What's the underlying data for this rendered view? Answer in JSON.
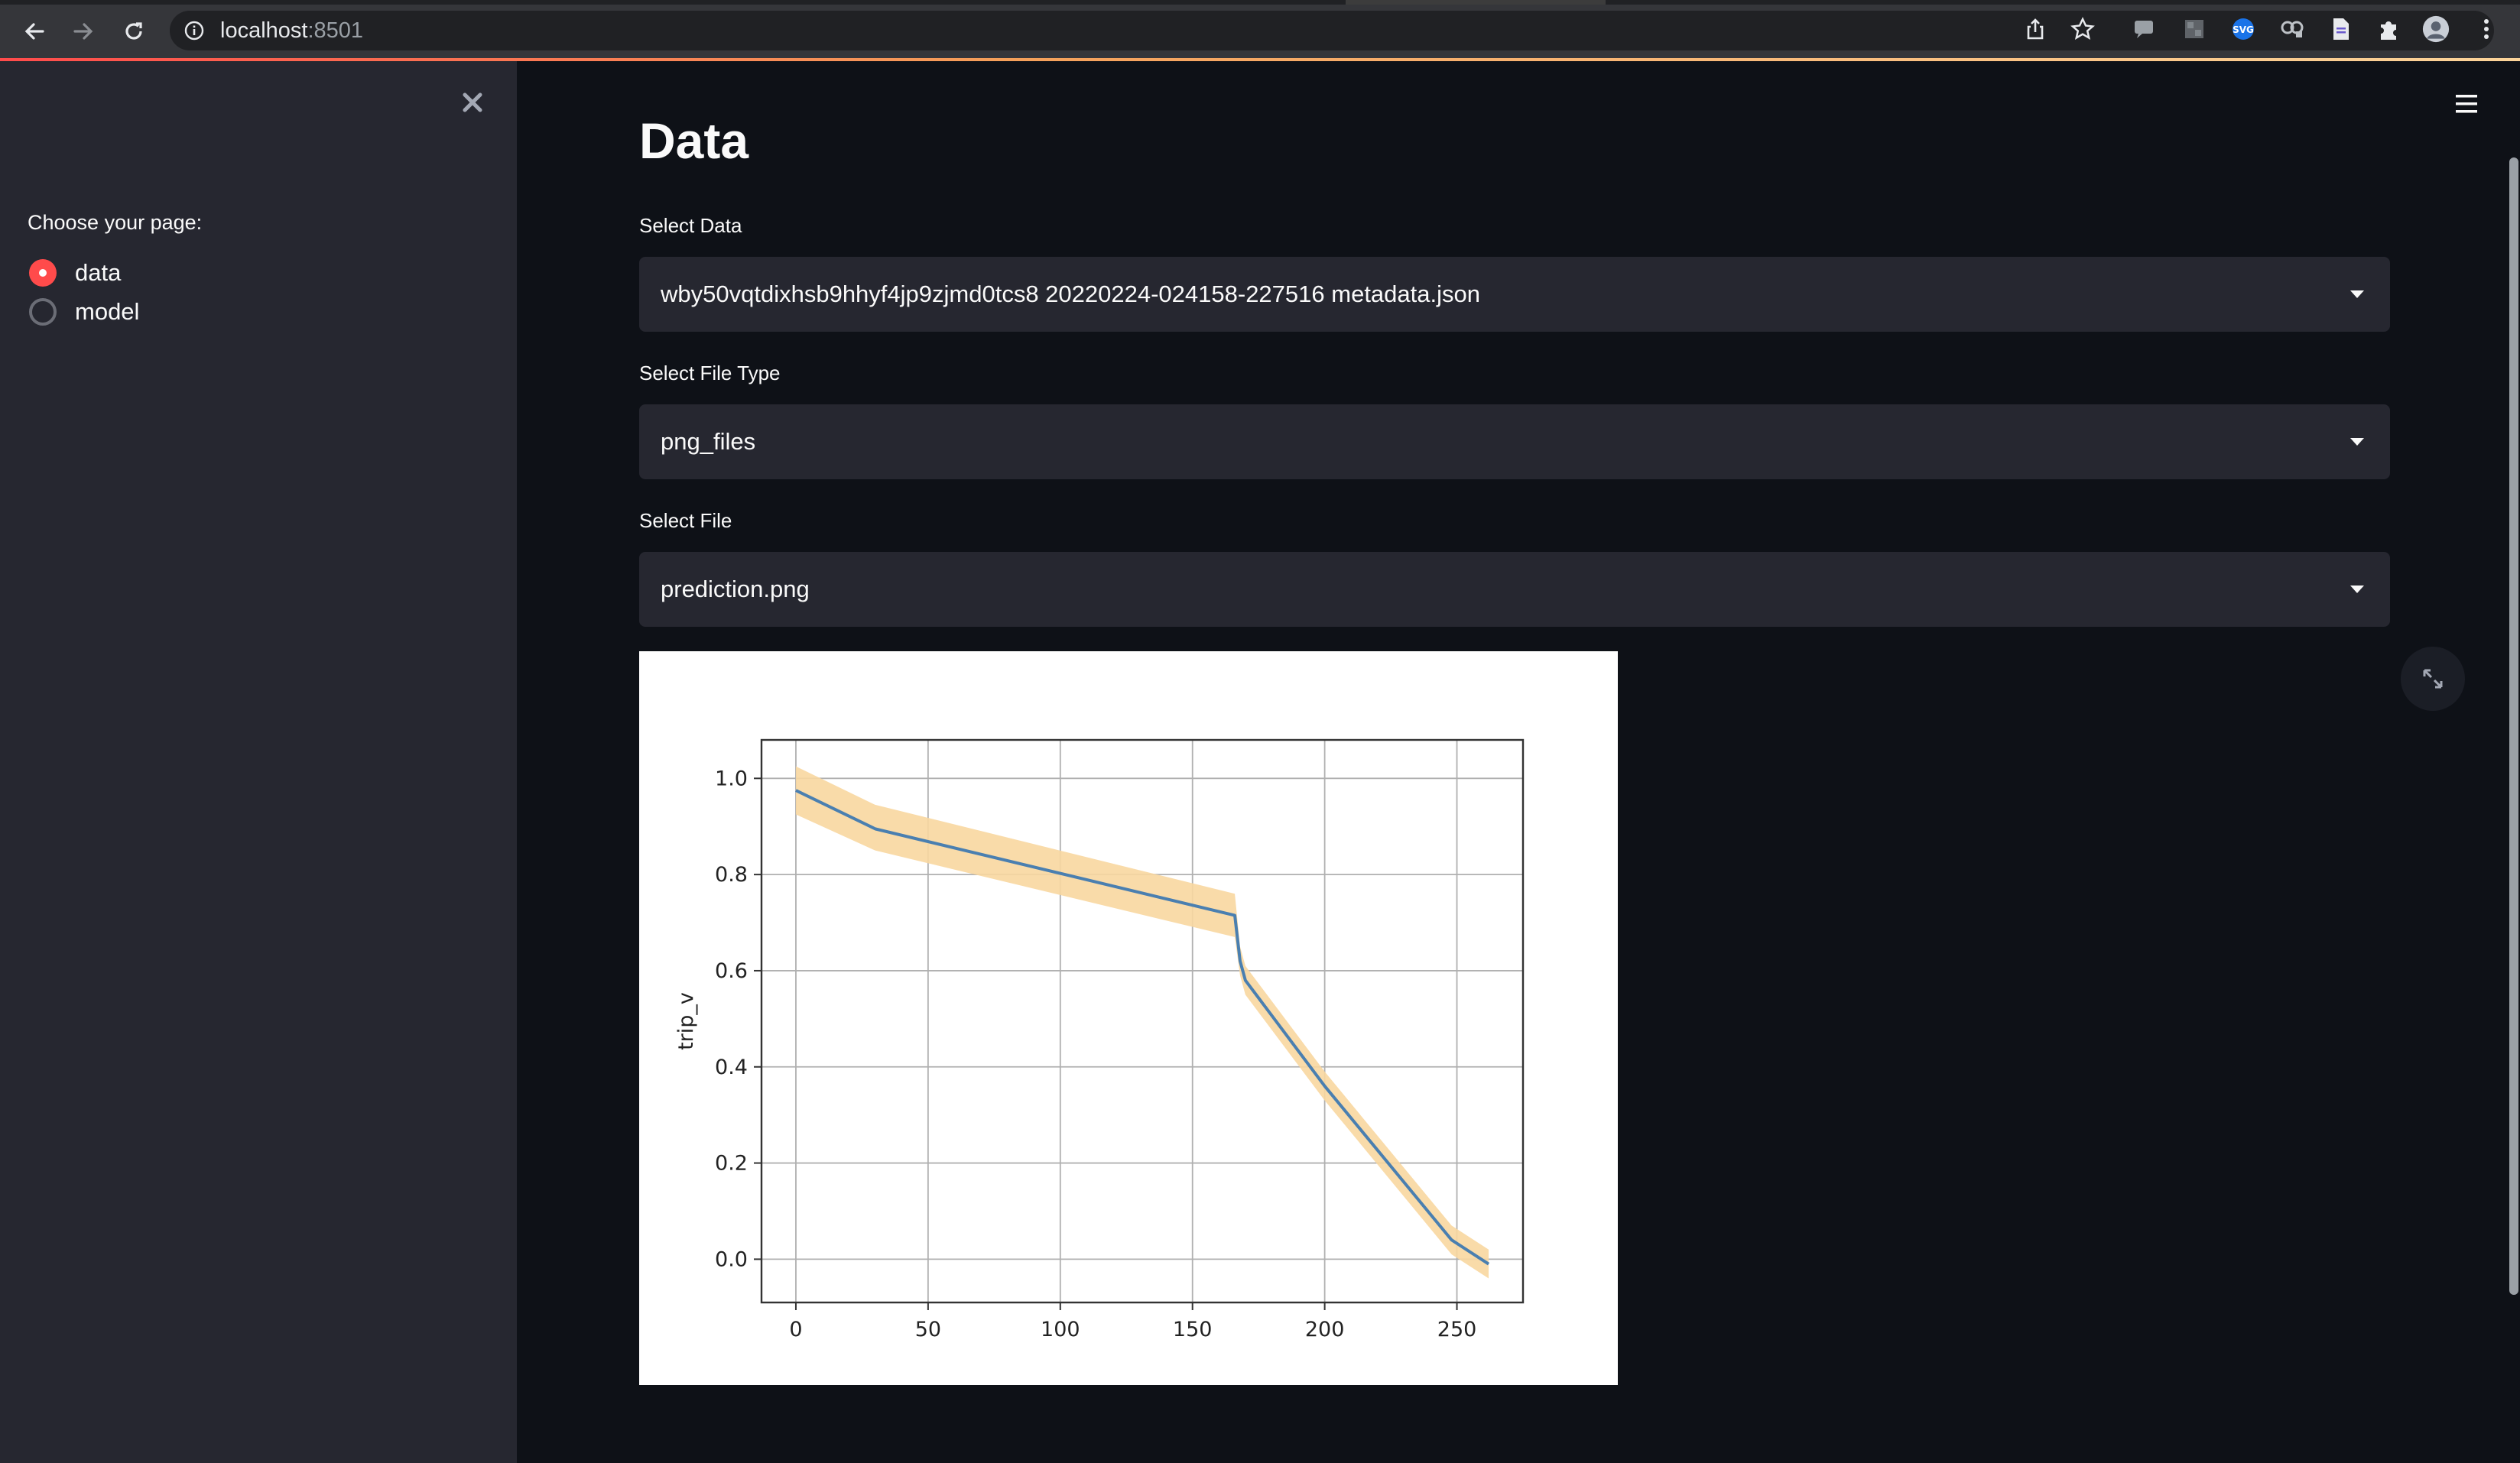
{
  "browser": {
    "url_host": "localhost",
    "url_port": ":8501"
  },
  "sidebar": {
    "radio_title": "Choose your page:",
    "options": [
      {
        "label": "data",
        "selected": true
      },
      {
        "label": "model",
        "selected": false
      }
    ]
  },
  "main": {
    "title": "Data",
    "select_data": {
      "label": "Select Data",
      "value": "wby50vqtdixhsb9hhyf4jp9zjmd0tcs8 20220224-024158-227516 metadata.json"
    },
    "select_file_type": {
      "label": "Select File Type",
      "value": "png_files"
    },
    "select_file": {
      "label": "Select File",
      "value": "prediction.png"
    }
  },
  "colors": {
    "accent": "#ff4b4b",
    "background": "#0e1117",
    "sidebar": "#262730",
    "line": "#4a7fb0",
    "band": "#f8d7a0"
  },
  "chart_data": {
    "type": "line",
    "title": "",
    "xlabel": "",
    "ylabel": "trip_v",
    "xlim": [
      -13,
      275
    ],
    "ylim": [
      -0.09,
      1.08
    ],
    "grid": true,
    "xticks": [
      0,
      50,
      100,
      150,
      200,
      250
    ],
    "yticks": [
      0.0,
      0.2,
      0.4,
      0.6,
      0.8,
      1.0
    ],
    "series": [
      {
        "x": [
          0,
          30,
          166,
          168,
          170,
          200,
          248,
          262
        ],
        "y": [
          0.975,
          0.895,
          0.715,
          0.62,
          0.58,
          0.36,
          0.04,
          -0.01
        ]
      }
    ],
    "band": {
      "x": [
        0,
        30,
        166,
        168,
        170,
        200,
        248,
        262
      ],
      "lower": [
        0.925,
        0.85,
        0.67,
        0.59,
        0.55,
        0.33,
        0.01,
        -0.04
      ],
      "upper": [
        1.025,
        0.945,
        0.76,
        0.65,
        0.61,
        0.39,
        0.07,
        0.02
      ]
    }
  }
}
